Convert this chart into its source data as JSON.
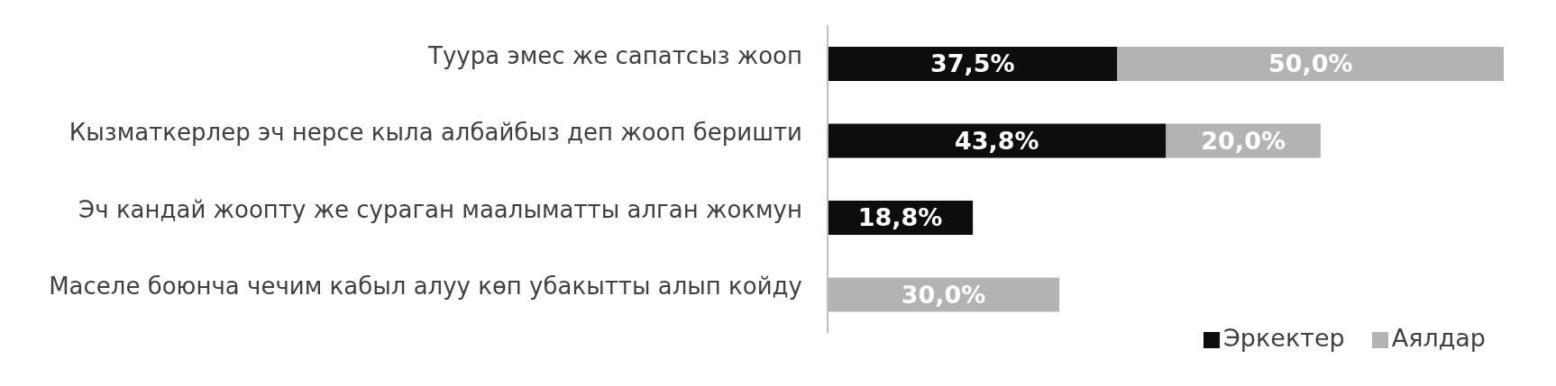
{
  "chart_data": {
    "type": "bar",
    "orientation": "horizontal",
    "stacked": true,
    "categories": [
      "Туура эмес же сапатсыз жооп",
      "Кызматкерлер эч нерсе кыла албайбыз деп жооп беришти",
      "Эч кандай жоопту же сураган маалыматты алган жокмун",
      "Маселе боюнча чечим кабыл алуу көп убакытты алып койду"
    ],
    "series": [
      {
        "name": "Эркектер",
        "color": "#0d0d0d",
        "values": [
          37.5,
          43.8,
          18.8,
          null
        ],
        "value_labels": [
          "37,5%",
          "43,8%",
          "18,8%",
          null
        ]
      },
      {
        "name": "Аялдар",
        "color": "#b3b3b3",
        "values": [
          50.0,
          20.0,
          null,
          30.0
        ],
        "value_labels": [
          "50,0%",
          "20,0%",
          null,
          "30,0%"
        ]
      }
    ],
    "legend": "bottom right"
  }
}
